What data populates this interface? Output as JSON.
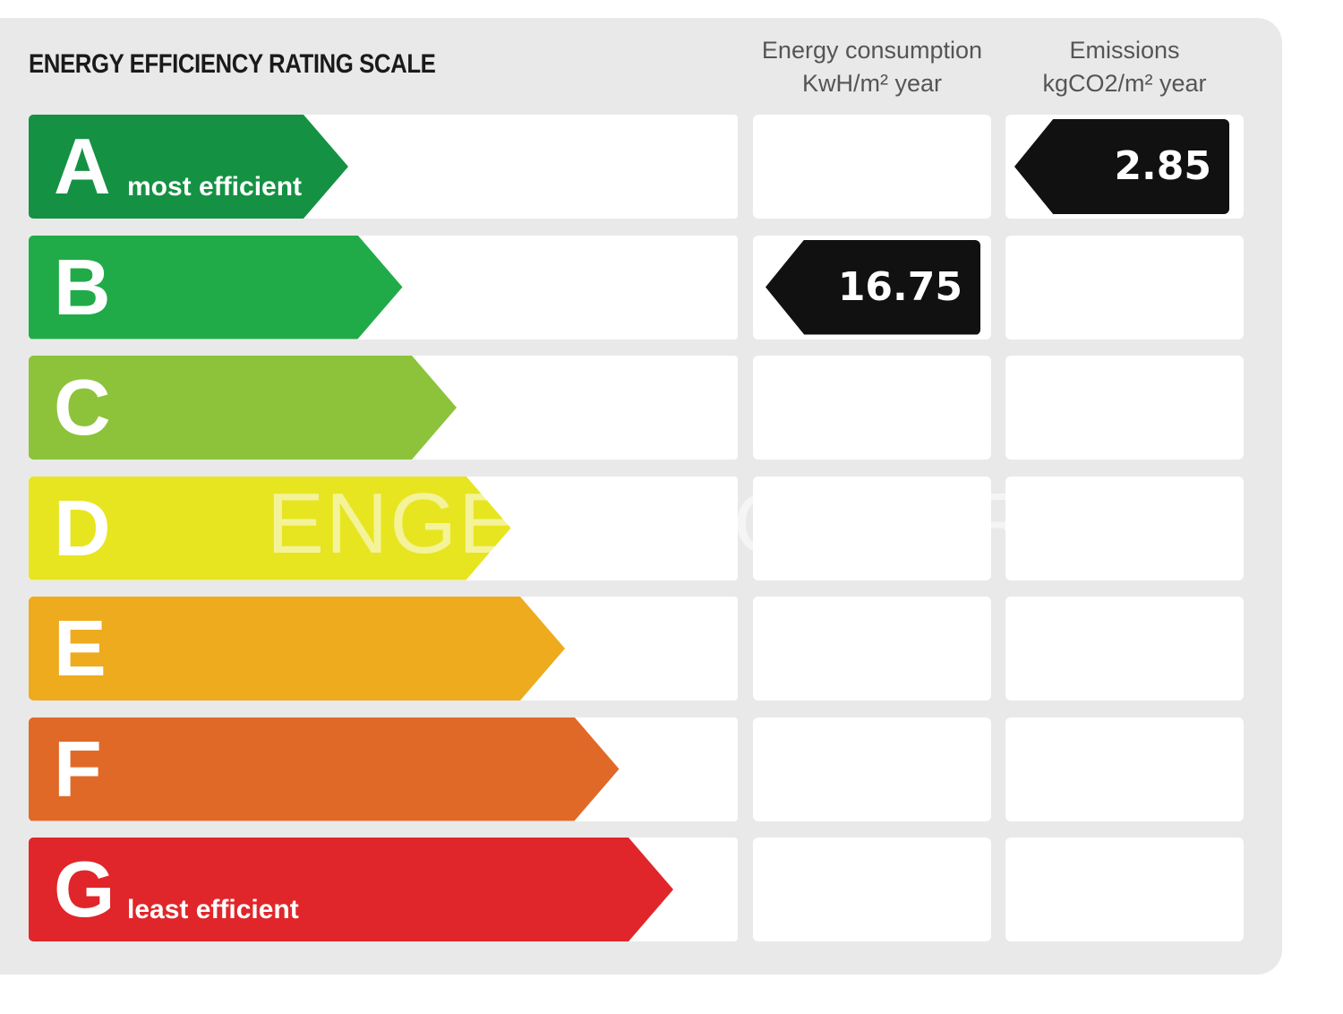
{
  "title": "ENERGY EFFICIENCY RATING SCALE",
  "columns": {
    "energy": {
      "line1": "Energy consumption",
      "line2": "KwH/m² year"
    },
    "emissions": {
      "line1": "Emissions",
      "line2": "kgCO2/m² year"
    }
  },
  "watermark": "ENGEL & VÖLKERS",
  "chart_data": {
    "type": "table",
    "title": "ENERGY EFFICIENCY RATING SCALE",
    "ratings": [
      {
        "letter": "A",
        "label": "most efficient",
        "color": "#159143"
      },
      {
        "letter": "B",
        "label": "",
        "color": "#21ab48"
      },
      {
        "letter": "C",
        "label": "",
        "color": "#8dc33a"
      },
      {
        "letter": "D",
        "label": "",
        "color": "#e7e51f"
      },
      {
        "letter": "E",
        "label": "",
        "color": "#edab1d"
      },
      {
        "letter": "F",
        "label": "",
        "color": "#e06928"
      },
      {
        "letter": "G",
        "label": "least efficient",
        "color": "#e0262a"
      }
    ],
    "energy_consumption": {
      "rating": "B",
      "value": "16.75",
      "unit": "KwH/m² year"
    },
    "emissions": {
      "rating": "A",
      "value": "2.85",
      "unit": "kgCO2/m² year"
    }
  }
}
